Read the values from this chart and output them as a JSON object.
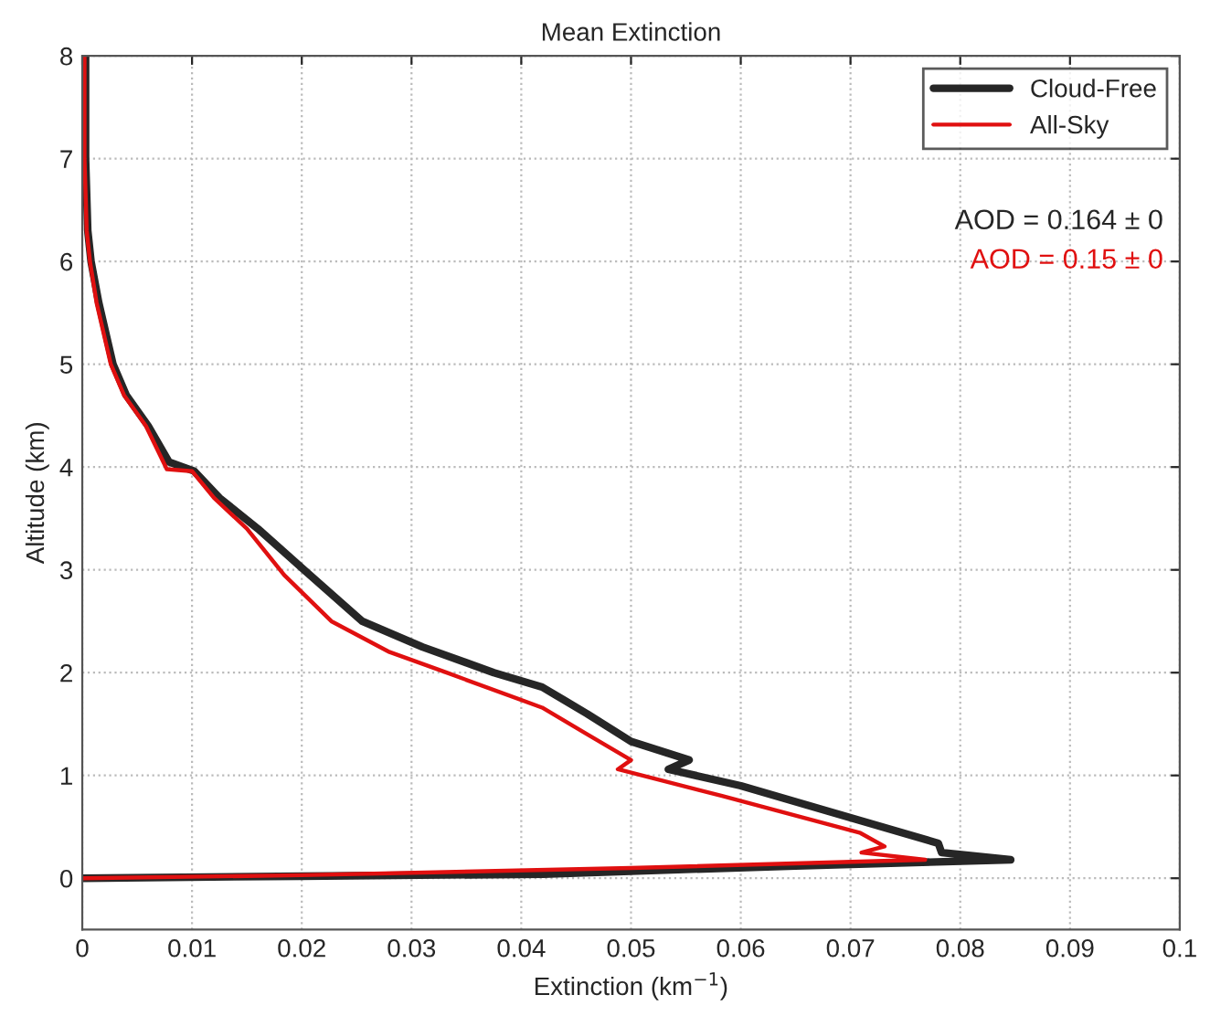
{
  "chart_data": {
    "type": "line",
    "title": "Mean Extinction",
    "xlabel": "Extinction (km$^{−1}$)",
    "ylabel": "Altitude (km)",
    "xlim": [
      0,
      0.1
    ],
    "xticks": [
      0,
      0.01,
      0.02,
      0.03,
      0.04,
      0.05,
      0.06,
      0.07,
      0.08,
      0.09,
      0.1
    ],
    "ylim": [
      -0.5,
      8
    ],
    "yticks": [
      0,
      1,
      2,
      3,
      4,
      5,
      6,
      7,
      8
    ],
    "grid": true,
    "legend": "top right",
    "annotations": [
      "AOD = 0.164 ± 0",
      "AOD = 0.15 ± 0"
    ],
    "series": [
      {
        "name": "Cloud-Free",
        "color": "#262626",
        "x": [
          0.0003,
          0.0003,
          0.0005,
          0.0008,
          0.0015,
          0.0028,
          0.004,
          0.006,
          0.0079,
          0.0102,
          0.0125,
          0.016,
          0.0202,
          0.0255,
          0.031,
          0.0375,
          0.0419,
          0.046,
          0.05,
          0.0553,
          0.0534,
          0.06,
          0.068,
          0.078,
          0.0783,
          0.0846,
          0.065,
          0.042,
          0.02,
          0.0
        ],
        "values": [
          8,
          7,
          6.3,
          6,
          5.6,
          5,
          4.7,
          4.4,
          4.05,
          3.96,
          3.7,
          3.4,
          3.0,
          2.5,
          2.25,
          2.0,
          1.86,
          1.6,
          1.33,
          1.15,
          1.06,
          0.9,
          0.65,
          0.34,
          0.25,
          0.18,
          0.12,
          0.04,
          0.02,
          0.0
        ]
      },
      {
        "name": "All-Sky",
        "color": "#e01010",
        "x": [
          0.0002,
          0.0002,
          0.0004,
          0.0007,
          0.0013,
          0.0026,
          0.0038,
          0.0058,
          0.0077,
          0.01,
          0.012,
          0.015,
          0.0184,
          0.0227,
          0.028,
          0.0332,
          0.0419,
          0.046,
          0.05,
          0.0488,
          0.0583,
          0.0709,
          0.0731,
          0.071,
          0.0768,
          0.05,
          0.02,
          0.0
        ],
        "values": [
          8,
          7,
          6.3,
          6,
          5.6,
          5,
          4.7,
          4.4,
          3.98,
          3.96,
          3.7,
          3.4,
          2.95,
          2.5,
          2.2,
          2.0,
          1.66,
          1.4,
          1.15,
          1.06,
          0.8,
          0.44,
          0.31,
          0.25,
          0.18,
          0.1,
          0.03,
          0.0
        ]
      }
    ]
  }
}
